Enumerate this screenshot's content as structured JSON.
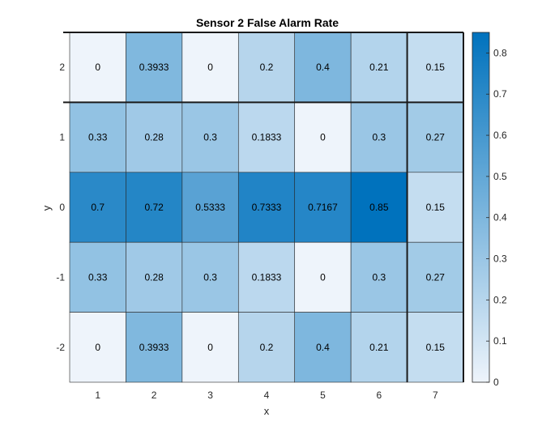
{
  "chart_data": {
    "type": "heatmap",
    "title": "Sensor 2 False Alarm Rate",
    "xlabel": "x",
    "ylabel": "y",
    "x_categories": [
      "1",
      "2",
      "3",
      "4",
      "5",
      "6",
      "7"
    ],
    "y_categories": [
      "2",
      "1",
      "0",
      "-1",
      "-2"
    ],
    "values": [
      [
        0,
        0.3933,
        0,
        0.2,
        0.4,
        0.21,
        0.15
      ],
      [
        0.33,
        0.28,
        0.3,
        0.1833,
        0,
        0.3,
        0.27
      ],
      [
        0.7,
        0.72,
        0.5333,
        0.7333,
        0.7167,
        0.85,
        0.15
      ],
      [
        0.33,
        0.28,
        0.3,
        0.1833,
        0,
        0.3,
        0.27
      ],
      [
        0,
        0.3933,
        0,
        0.2,
        0.4,
        0.21,
        0.15
      ]
    ],
    "value_labels": [
      [
        "0",
        "0.3933",
        "0",
        "0.2",
        "0.4",
        "0.21",
        "0.15"
      ],
      [
        "0.33",
        "0.28",
        "0.3",
        "0.1833",
        "0",
        "0.3",
        "0.27"
      ],
      [
        "0.7",
        "0.72",
        "0.5333",
        "0.7333",
        "0.7167",
        "0.85",
        "0.15"
      ],
      [
        "0.33",
        "0.28",
        "0.3",
        "0.1833",
        "0",
        "0.3",
        "0.27"
      ],
      [
        "0",
        "0.3933",
        "0",
        "0.2",
        "0.4",
        "0.21",
        "0.15"
      ]
    ],
    "colorbar": {
      "range": [
        0,
        0.85
      ],
      "ticks": [
        "0",
        "0.1",
        "0.2",
        "0.3",
        "0.4",
        "0.5",
        "0.6",
        "0.7",
        "0.8"
      ],
      "color_low": "#eef4fb",
      "color_high": "#0072bd"
    }
  }
}
